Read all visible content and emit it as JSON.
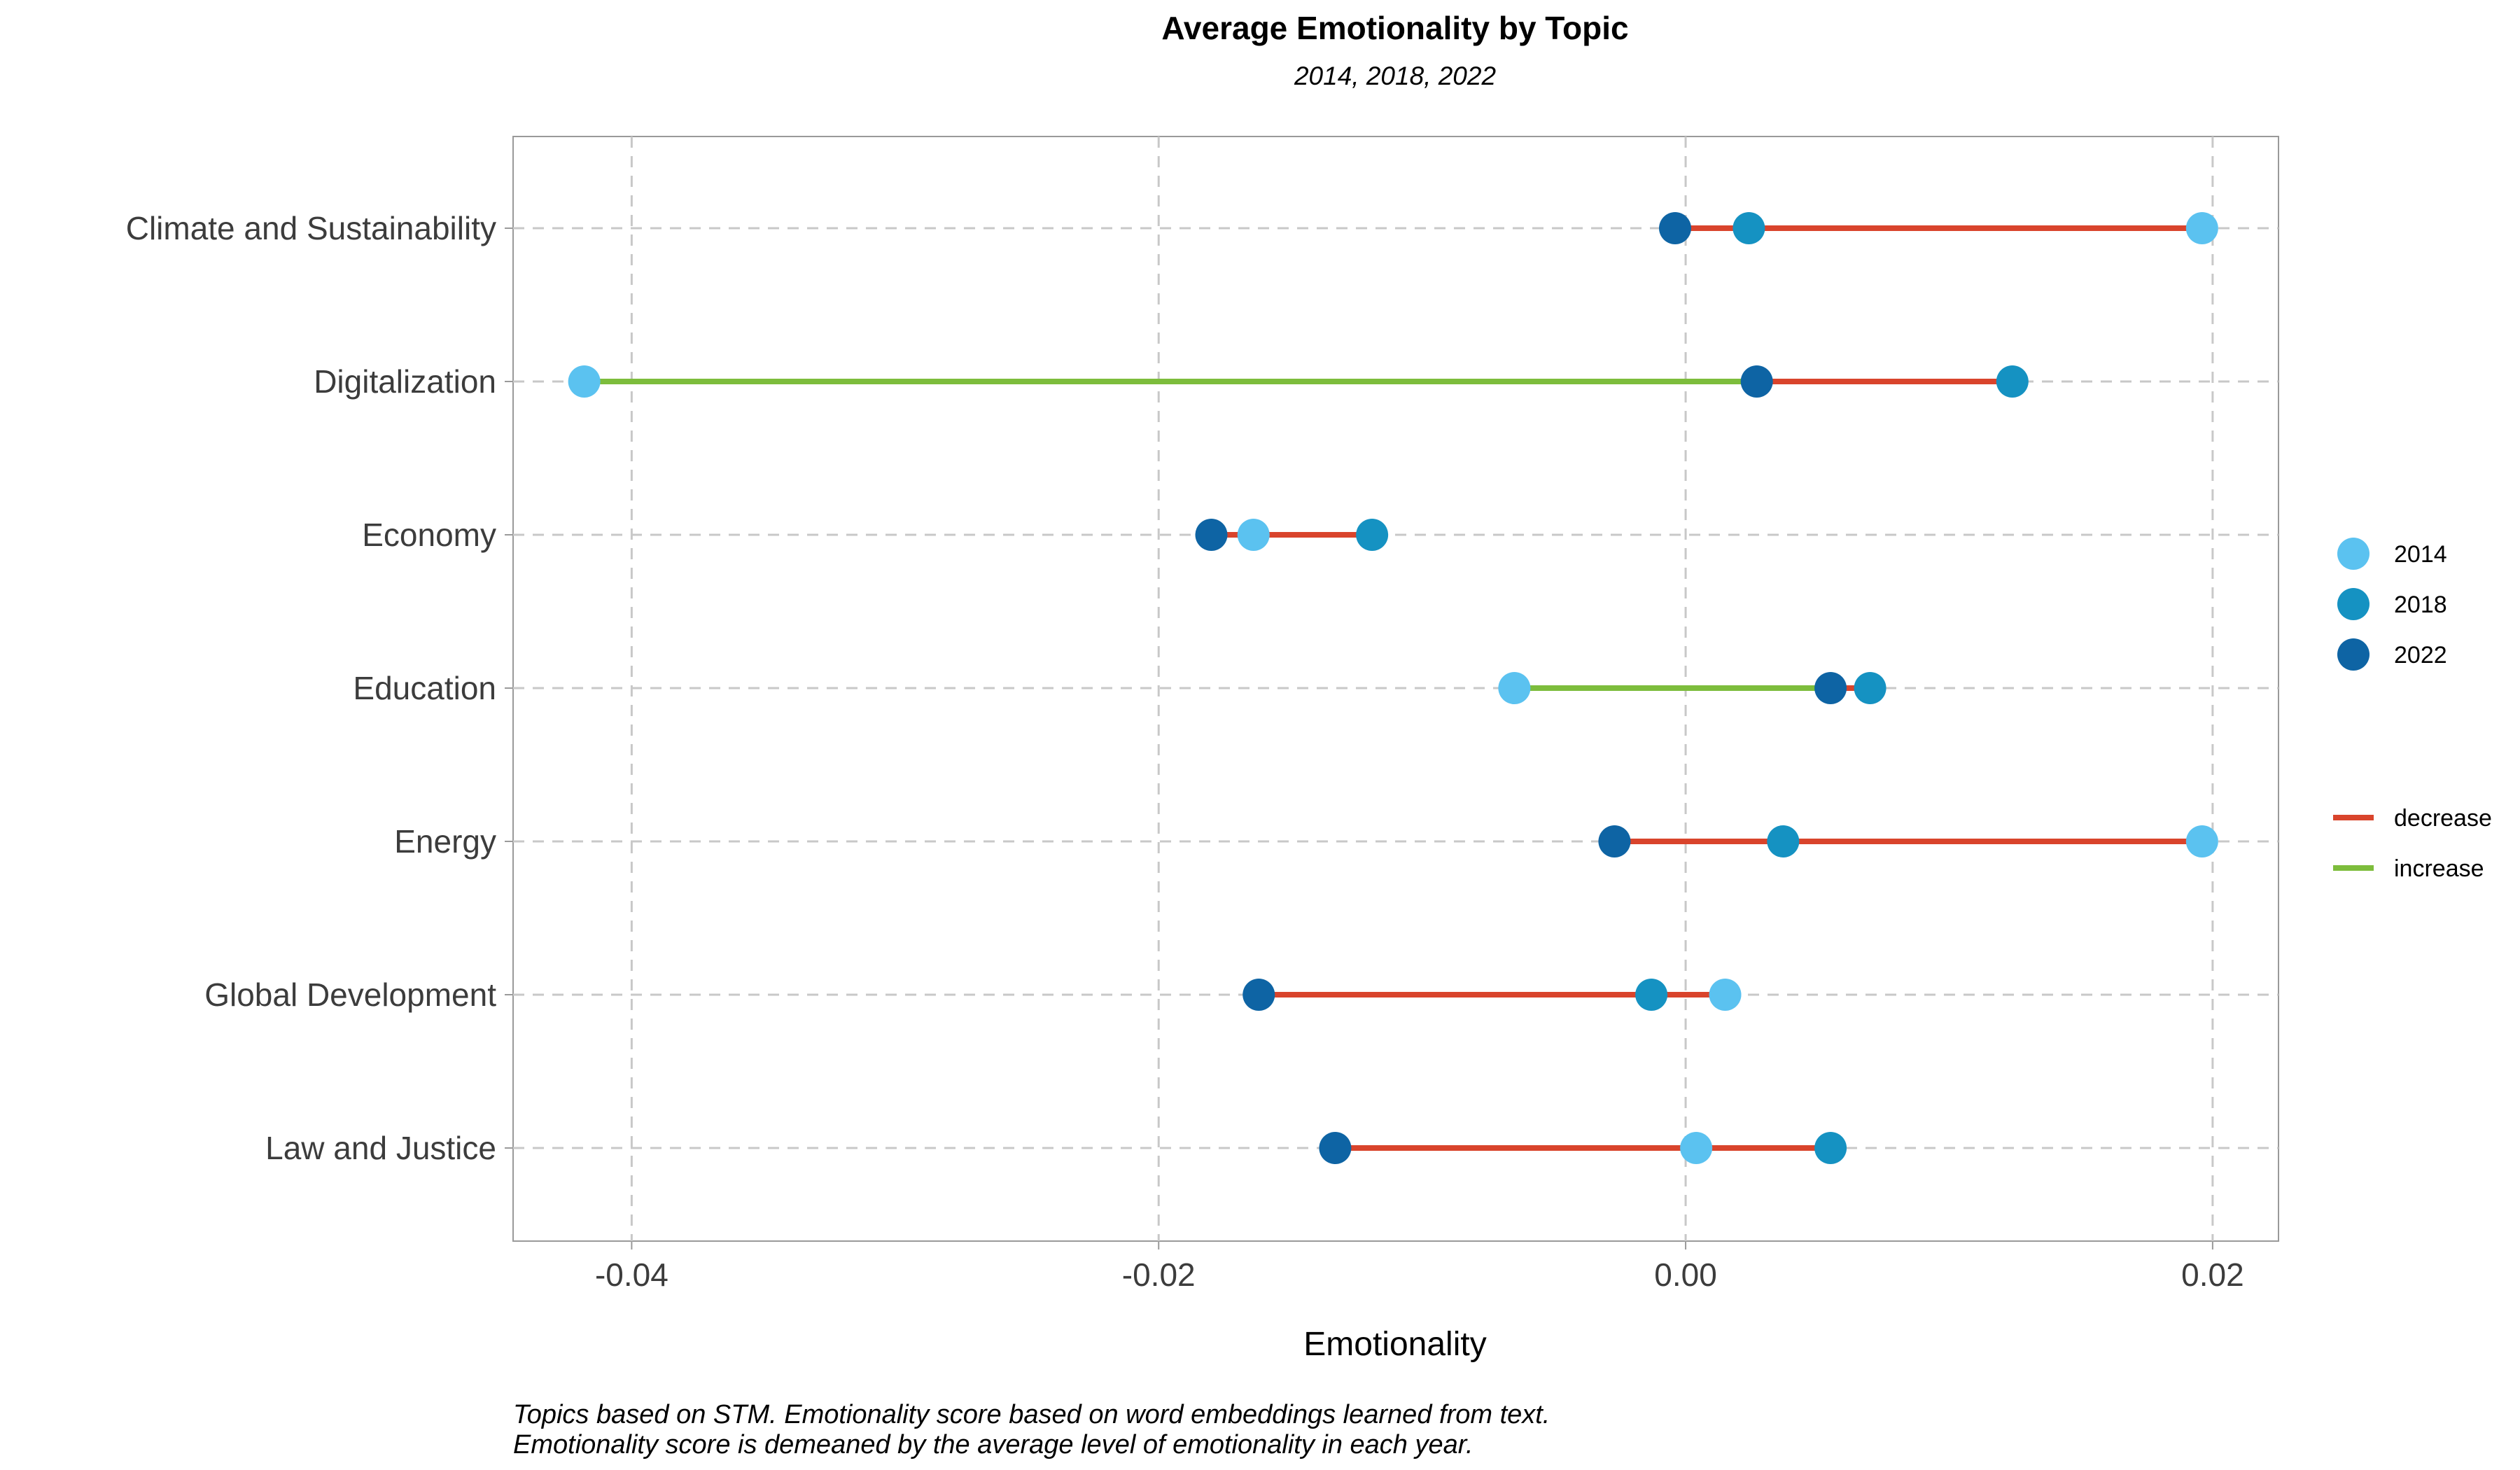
{
  "chart_data": {
    "type": "dumbbell",
    "title": "Average Emotionality by Topic",
    "subtitle": "2014, 2018, 2022",
    "xlabel": "Emotionality",
    "xlim": [
      -0.0445,
      0.0225
    ],
    "x_ticks": [
      {
        "value": -0.04,
        "label": "-0.04"
      },
      {
        "value": -0.02,
        "label": "-0.02"
      },
      {
        "value": 0.0,
        "label": "0.00"
      },
      {
        "value": 0.02,
        "label": "0.02"
      }
    ],
    "grid": true,
    "years": [
      "2014",
      "2018",
      "2022"
    ],
    "year_colors": {
      "2014": "#5bc2f0",
      "2018": "#1592c2",
      "2022": "#0e64a4"
    },
    "change_legend": [
      {
        "label": "decrease",
        "color": "#d9442c"
      },
      {
        "label": "increase",
        "color": "#7dbd3c"
      }
    ],
    "topics": [
      {
        "name": "Climate and Sustainability",
        "y2014": 0.0196,
        "y2018": 0.0024,
        "y2022": -0.0004,
        "segments": [
          {
            "from": 0.0196,
            "to": 0.0024,
            "change": "decrease"
          },
          {
            "from": 0.0024,
            "to": -0.0004,
            "change": "decrease"
          }
        ]
      },
      {
        "name": "Digitalization",
        "y2014": -0.0418,
        "y2018": 0.0124,
        "y2022": 0.0027,
        "segments": [
          {
            "from": -0.0418,
            "to": 0.0124,
            "change": "increase"
          },
          {
            "from": 0.0124,
            "to": 0.0027,
            "change": "decrease"
          }
        ]
      },
      {
        "name": "Economy",
        "y2014": -0.0164,
        "y2018": -0.0119,
        "y2022": -0.018,
        "segments": [
          {
            "from": -0.0164,
            "to": -0.0119,
            "change": "increase"
          },
          {
            "from": -0.0119,
            "to": -0.018,
            "change": "decrease"
          }
        ]
      },
      {
        "name": "Education",
        "y2014": -0.0065,
        "y2018": 0.007,
        "y2022": 0.0055,
        "segments": [
          {
            "from": -0.0065,
            "to": 0.007,
            "change": "increase"
          },
          {
            "from": 0.007,
            "to": 0.0055,
            "change": "decrease"
          }
        ]
      },
      {
        "name": "Energy",
        "y2014": 0.0196,
        "y2018": 0.0037,
        "y2022": -0.0027,
        "segments": [
          {
            "from": 0.0196,
            "to": 0.0037,
            "change": "decrease"
          },
          {
            "from": 0.0037,
            "to": -0.0027,
            "change": "decrease"
          }
        ]
      },
      {
        "name": "Global Development",
        "y2014": 0.0015,
        "y2018": -0.0013,
        "y2022": -0.0162,
        "segments": [
          {
            "from": 0.0015,
            "to": -0.0013,
            "change": "decrease"
          },
          {
            "from": -0.0013,
            "to": -0.0162,
            "change": "decrease"
          }
        ]
      },
      {
        "name": "Law and Justice",
        "y2014": 0.0004,
        "y2018": 0.0055,
        "y2022": -0.0133,
        "segments": [
          {
            "from": 0.0004,
            "to": 0.0055,
            "change": "increase"
          },
          {
            "from": 0.0055,
            "to": -0.0133,
            "change": "decrease"
          }
        ]
      }
    ],
    "caption_lines": [
      "Topics based on STM. Emotionality score based on word embeddings learned from text.",
      "Emotionality score is demeaned by the average level of emotionality in each year."
    ]
  }
}
